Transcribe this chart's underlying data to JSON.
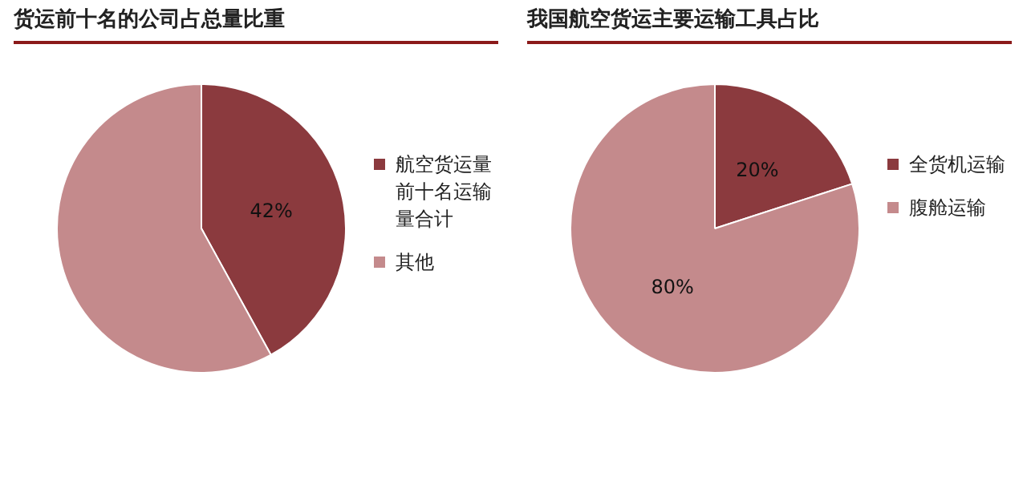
{
  "chart_data": [
    {
      "type": "pie",
      "title": "货运前十名的公司占总量比重",
      "categories": [
        "航空货运量前十名运输量合计",
        "其他"
      ],
      "values": [
        42,
        58
      ],
      "colors": [
        "#8b3a3e",
        "#c48a8c"
      ],
      "value_labels": [
        "42%",
        null
      ],
      "legend": "right"
    },
    {
      "type": "pie",
      "title": "我国航空货运主要运输工具占比",
      "categories": [
        "全货机运输",
        "腹舱运输"
      ],
      "values": [
        20,
        80
      ],
      "colors": [
        "#8b3a3e",
        "#c48a8c"
      ],
      "value_labels": [
        "20%",
        "80%"
      ],
      "legend": "right"
    }
  ]
}
